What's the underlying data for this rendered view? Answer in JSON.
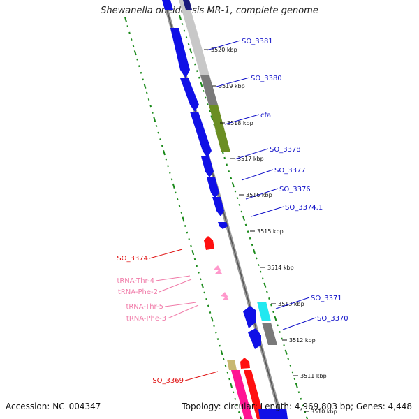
{
  "title": "Shewanella oneidensis MR-1, complete genome",
  "footer": {
    "accession": "Accession: NC_004347",
    "topology": "Topology: circular; Length: 4,969,803 bp; Genes: 4,448"
  },
  "colors": {
    "cds_blue": "#1010e6",
    "rna_red": "#ff1010",
    "trna_pink": "#ff99cc",
    "backbone": "#777777",
    "scale_green": "#1a8a1a",
    "cog_gray": "#7a7a7a",
    "cog_light_gray": "#c8c8c8",
    "cog_olive": "#6b8e23",
    "cog_cyan": "#22e8f0",
    "cog_magenta": "#ff1493",
    "cog_khaki": "#c8b870"
  },
  "scale_ticks": [
    "3520 kbp",
    "3519 kbp",
    "3518 kbp",
    "3517 kbp",
    "3516 kbp",
    "3515 kbp",
    "3514 kbp",
    "3513 kbp",
    "3512 kbp",
    "3511 kbp",
    "3510 kbp"
  ],
  "gene_labels": [
    {
      "name": "SO_3381",
      "kind": "cds"
    },
    {
      "name": "SO_3380",
      "kind": "cds"
    },
    {
      "name": "cfa",
      "kind": "cds"
    },
    {
      "name": "SO_3378",
      "kind": "cds"
    },
    {
      "name": "SO_3377",
      "kind": "cds"
    },
    {
      "name": "SO_3376",
      "kind": "cds"
    },
    {
      "name": "SO_3374.1",
      "kind": "cds"
    },
    {
      "name": "SO_3374",
      "kind": "rna"
    },
    {
      "name": "tRNA-Thr-4",
      "kind": "trna"
    },
    {
      "name": "tRNA-Phe-2",
      "kind": "trna"
    },
    {
      "name": "tRNA-Thr-5",
      "kind": "trna"
    },
    {
      "name": "tRNA-Phe-3",
      "kind": "trna"
    },
    {
      "name": "SO_3371",
      "kind": "cds"
    },
    {
      "name": "SO_3370",
      "kind": "cds"
    },
    {
      "name": "SO_3369",
      "kind": "rna"
    }
  ]
}
